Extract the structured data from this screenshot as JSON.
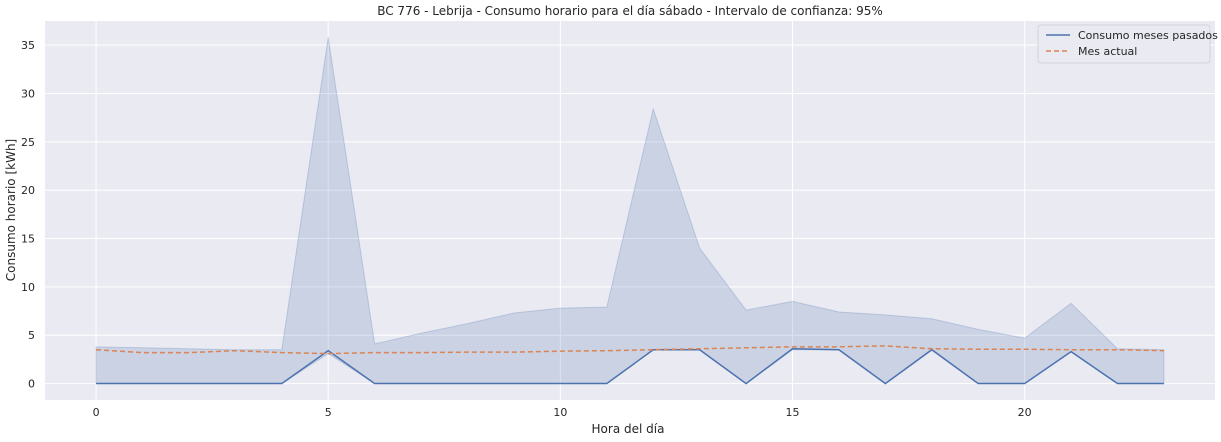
{
  "chart_data": {
    "type": "line",
    "title": "BC 776 - Lebrija - Consumo horario para el día sábado - Intervalo de confianza: 95%",
    "xlabel": "Hora del día",
    "ylabel": "Consumo horario [kWh]",
    "xlim": [
      -1.1,
      24.1
    ],
    "ylim": [
      -1.7,
      37.5
    ],
    "xticks": [
      0,
      5,
      10,
      15,
      20
    ],
    "yticks": [
      0,
      5,
      10,
      15,
      20,
      25,
      30,
      35
    ],
    "grid": true,
    "legend_position": "top-right",
    "x": [
      0,
      1,
      2,
      3,
      4,
      5,
      6,
      7,
      8,
      9,
      10,
      11,
      12,
      13,
      14,
      15,
      16,
      17,
      18,
      19,
      20,
      21,
      22,
      23
    ],
    "series": [
      {
        "name": "Consumo meses pasados",
        "style": "solid",
        "color": "#4c72b0",
        "values": [
          0,
          0,
          0,
          0,
          0,
          3.4,
          0,
          0,
          0,
          0,
          0,
          0,
          3.5,
          3.5,
          0,
          3.6,
          3.5,
          0,
          3.5,
          0,
          0,
          3.3,
          0,
          0
        ]
      },
      {
        "name": "Mes actual",
        "style": "dashed",
        "color": "#dd8452",
        "values": [
          3.5,
          3.2,
          3.2,
          3.4,
          3.2,
          3.1,
          3.2,
          3.2,
          3.25,
          3.25,
          3.35,
          3.4,
          3.5,
          3.6,
          3.7,
          3.8,
          3.8,
          3.9,
          3.6,
          3.55,
          3.55,
          3.5,
          3.5,
          3.4
        ]
      }
    ],
    "confidence_band": {
      "color": "#4c72b0",
      "lower": [
        0,
        0,
        0,
        0,
        0,
        3.1,
        0,
        0,
        0,
        0,
        0,
        0,
        3.5,
        3.5,
        0,
        3.5,
        3.5,
        0,
        3.5,
        0,
        0,
        3.3,
        0,
        0
      ],
      "upper": [
        3.8,
        3.7,
        3.6,
        3.5,
        3.5,
        35.8,
        4.1,
        5.2,
        6.2,
        7.3,
        7.8,
        7.9,
        28.4,
        14.0,
        7.6,
        8.5,
        7.4,
        7.1,
        6.7,
        5.6,
        4.7,
        8.3,
        3.6,
        3.5
      ]
    }
  }
}
